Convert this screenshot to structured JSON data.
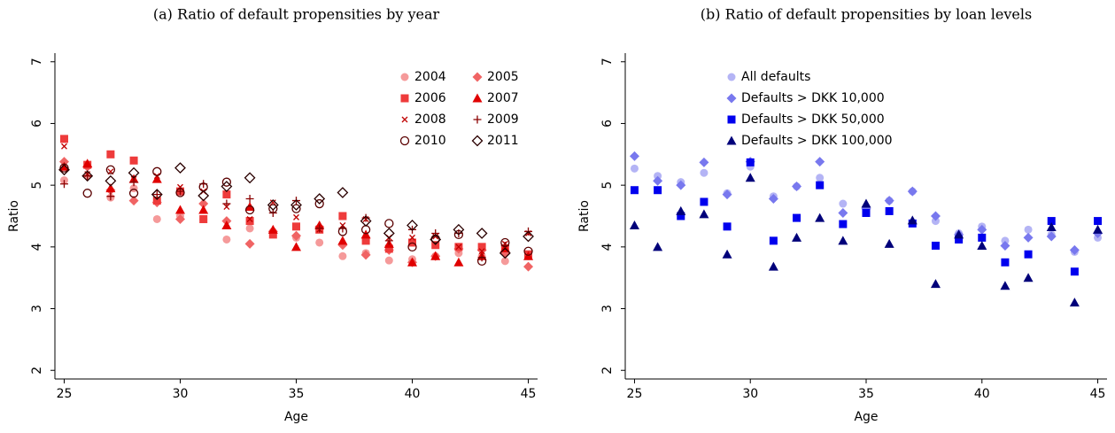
{
  "chart_data": [
    {
      "type": "scatter",
      "title": "(a) Ratio of default propensities by year",
      "xlabel": "Age",
      "ylabel": "Ratio",
      "x": [
        25,
        26,
        27,
        28,
        29,
        30,
        31,
        32,
        33,
        34,
        35,
        36,
        37,
        38,
        39,
        40,
        41,
        42,
        43,
        44,
        45
      ],
      "xlim": [
        24.6,
        45.4
      ],
      "ylim": [
        1.86,
        7.14
      ],
      "xticks": [
        25,
        30,
        35,
        40,
        45
      ],
      "yticks": [
        2,
        3,
        4,
        5,
        6,
        7
      ],
      "legend": "upper right",
      "legend_columns": 2,
      "series": [
        {
          "name": "2004",
          "color": "#f59a9a",
          "marker": "circle",
          "values": [
            5.08,
            5.15,
            4.8,
            4.95,
            4.45,
            4.5,
            4.45,
            4.12,
            4.3,
            4.25,
            4.15,
            4.07,
            3.85,
            3.9,
            3.78,
            3.8,
            3.85,
            3.9,
            3.85,
            3.77,
            3.85
          ]
        },
        {
          "name": "2005",
          "color": "#f06464",
          "marker": "diamond",
          "values": [
            5.38,
            5.3,
            4.92,
            4.75,
            4.72,
            4.45,
            4.7,
            4.42,
            4.05,
            4.25,
            4.18,
            4.32,
            4.03,
            3.87,
            3.95,
            3.75,
            3.85,
            3.97,
            3.95,
            3.9,
            3.68
          ]
        },
        {
          "name": "2006",
          "color": "#ee3b3b",
          "marker": "square",
          "values": [
            5.75,
            5.33,
            5.5,
            5.4,
            4.75,
            4.9,
            4.45,
            4.85,
            4.42,
            4.2,
            4.33,
            4.28,
            4.5,
            4.1,
            3.97,
            4.07,
            4.03,
            4.0,
            4.0,
            3.98,
            3.88
          ]
        },
        {
          "name": "2007",
          "color": "#e00000",
          "marker": "triangle",
          "values": [
            5.3,
            5.35,
            4.95,
            5.1,
            5.1,
            4.6,
            4.6,
            4.35,
            4.65,
            4.28,
            4.0,
            4.35,
            4.1,
            4.2,
            4.05,
            3.75,
            3.85,
            3.75,
            3.85,
            3.98,
            3.85
          ]
        },
        {
          "name": "2008",
          "color": "#c00000",
          "marker": "x",
          "values": [
            5.63,
            5.18,
            5.22,
            5.1,
            5.15,
            4.97,
            4.9,
            4.65,
            4.45,
            4.72,
            4.48,
            4.28,
            4.35,
            4.45,
            4.15,
            4.15,
            4.17,
            4.0,
            3.93,
            4.05,
            4.22
          ]
        },
        {
          "name": "2009",
          "color": "#8b0000",
          "marker": "plus",
          "values": [
            5.02,
            5.15,
            4.82,
            5.05,
            4.85,
            4.9,
            5.02,
            4.7,
            4.78,
            4.55,
            4.75,
            4.3,
            4.3,
            4.47,
            4.1,
            4.28,
            4.22,
            4.22,
            3.83,
            4.02,
            4.25
          ]
        },
        {
          "name": "2010",
          "color": "#5a0000",
          "marker": "circle-open",
          "values": [
            5.28,
            4.87,
            5.25,
            4.87,
            5.22,
            4.88,
            4.97,
            5.05,
            4.6,
            4.62,
            4.62,
            4.7,
            4.25,
            4.28,
            4.38,
            4.0,
            4.13,
            4.2,
            3.77,
            4.07,
            3.93
          ]
        },
        {
          "name": "2011",
          "color": "#2a0000",
          "marker": "diamond-open",
          "values": [
            5.25,
            5.15,
            5.07,
            5.2,
            4.85,
            5.28,
            4.83,
            4.98,
            5.12,
            4.68,
            4.68,
            4.78,
            4.88,
            4.42,
            4.22,
            4.35,
            4.12,
            4.28,
            4.22,
            3.9,
            4.17
          ]
        }
      ]
    },
    {
      "type": "scatter",
      "title": "(b) Ratio of default propensities by loan levels",
      "xlabel": "Age",
      "ylabel": "Ratio",
      "x": [
        25,
        26,
        27,
        28,
        29,
        30,
        31,
        32,
        33,
        34,
        35,
        36,
        37,
        38,
        39,
        40,
        41,
        42,
        43,
        44,
        45
      ],
      "xlim": [
        24.6,
        45.4
      ],
      "ylim": [
        1.86,
        7.14
      ],
      "xticks": [
        25,
        30,
        35,
        40,
        45
      ],
      "yticks": [
        2,
        3,
        4,
        5,
        6,
        7
      ],
      "legend": "upper right",
      "legend_columns": 1,
      "series": [
        {
          "name": "All defaults",
          "color": "#b4b4f5",
          "marker": "circle",
          "values": [
            5.27,
            5.15,
            5.05,
            5.2,
            4.87,
            5.3,
            4.82,
            4.98,
            5.12,
            4.7,
            4.62,
            4.75,
            4.9,
            4.42,
            4.22,
            4.33,
            4.1,
            4.28,
            4.2,
            3.92,
            4.15
          ]
        },
        {
          "name": "Defaults > DKK 10,000",
          "color": "#7878ee",
          "marker": "diamond",
          "values": [
            5.47,
            5.07,
            5.0,
            5.37,
            4.85,
            5.38,
            4.78,
            4.98,
            5.38,
            4.55,
            4.62,
            4.75,
            4.9,
            4.5,
            4.2,
            4.28,
            4.02,
            4.15,
            4.17,
            3.95,
            4.22
          ]
        },
        {
          "name": "Defaults > DKK 50,000",
          "color": "#0000ee",
          "marker": "square",
          "values": [
            4.92,
            4.92,
            4.5,
            4.73,
            4.33,
            5.37,
            4.1,
            4.47,
            5.0,
            4.37,
            4.55,
            4.58,
            4.38,
            4.02,
            4.12,
            4.15,
            3.75,
            3.88,
            4.42,
            3.6,
            4.42
          ]
        },
        {
          "name": "Defaults > DKK 100,000",
          "color": "#00007a",
          "marker": "triangle",
          "values": [
            4.35,
            4.0,
            4.58,
            4.53,
            3.88,
            5.12,
            3.68,
            4.15,
            4.47,
            4.1,
            4.7,
            4.05,
            4.43,
            3.4,
            4.2,
            4.02,
            3.37,
            3.5,
            4.32,
            3.1,
            4.28
          ]
        }
      ]
    }
  ]
}
